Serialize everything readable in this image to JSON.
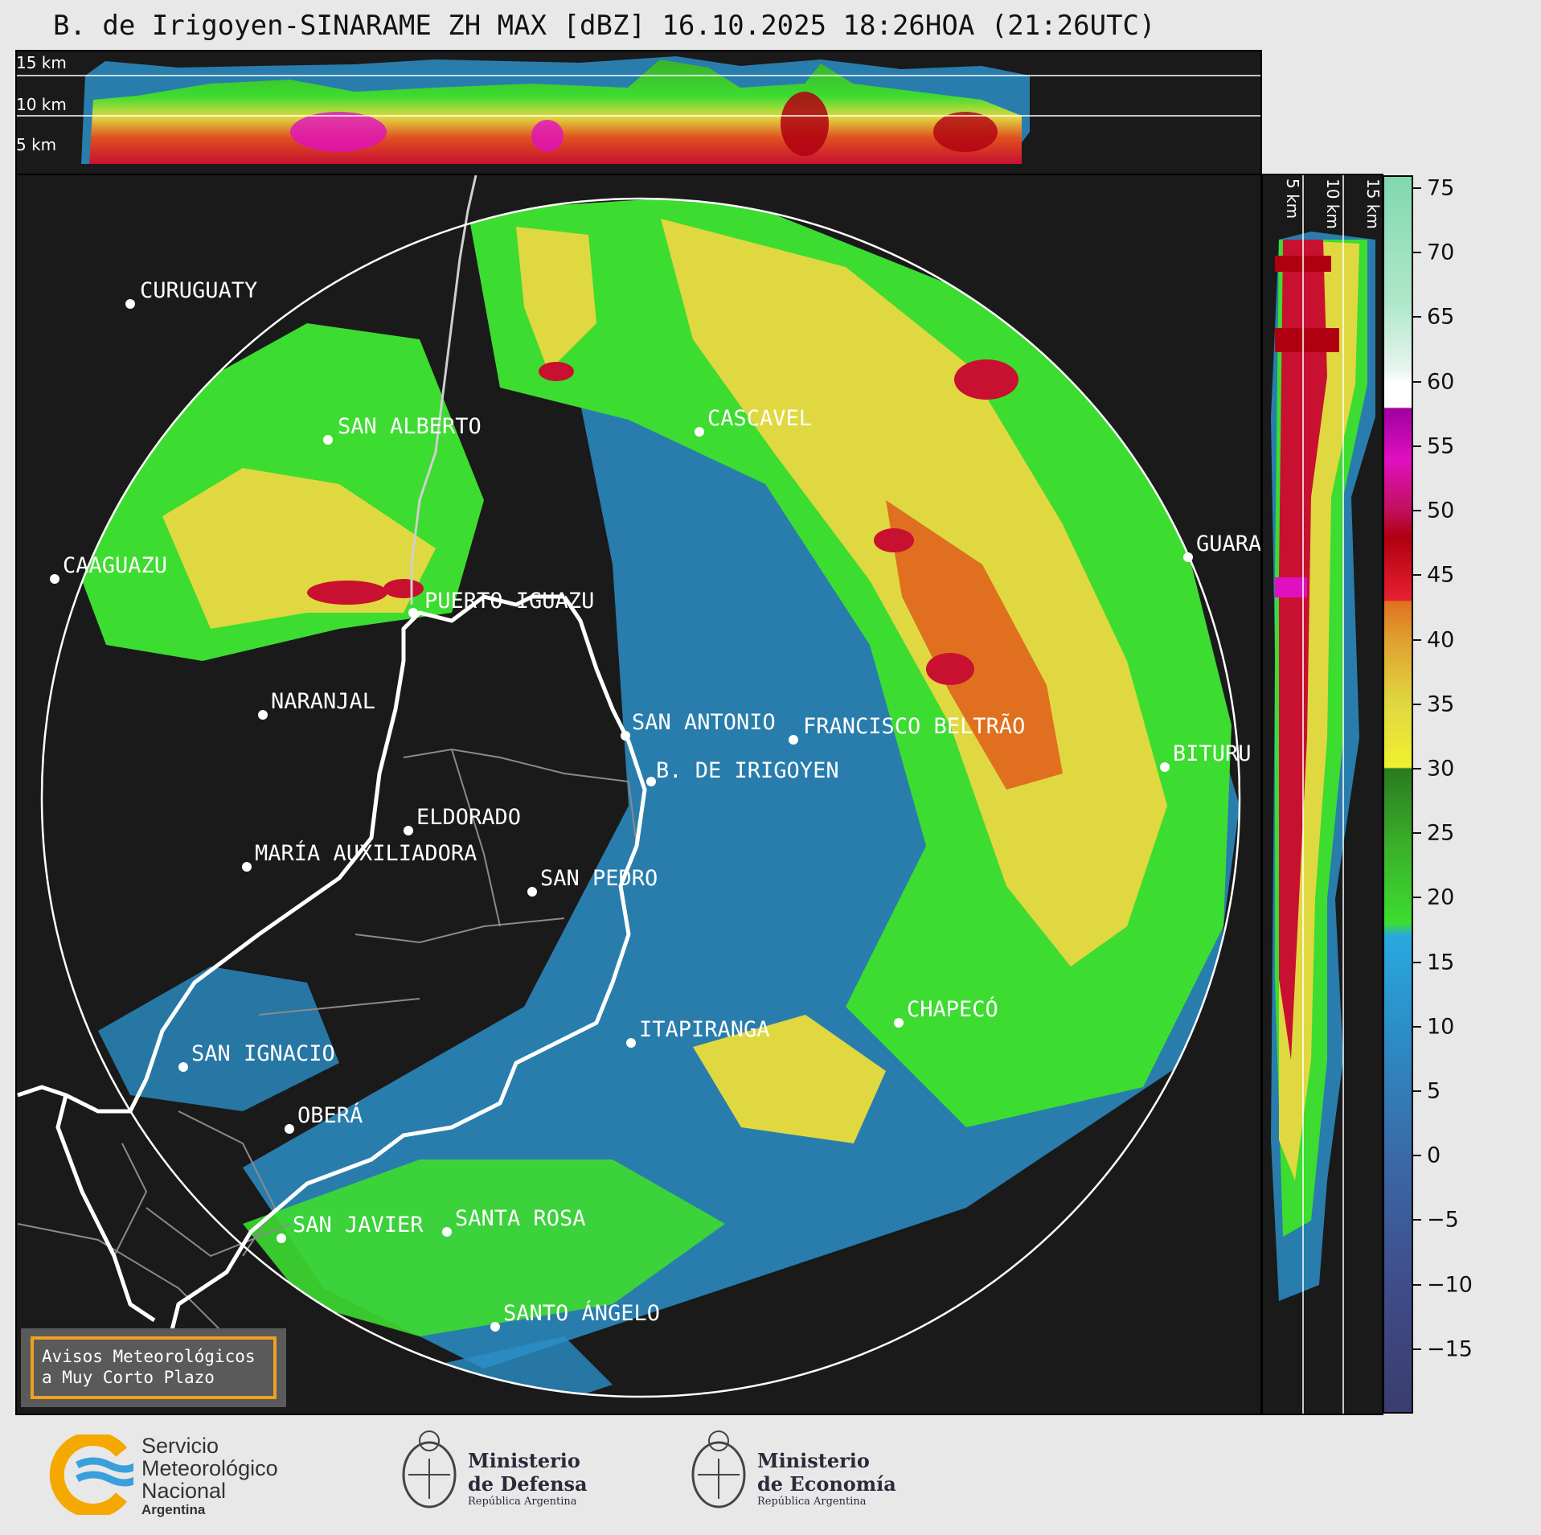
{
  "title": "B. de Irigoyen-SINARAME ZH MAX [dBZ] 16.10.2025 18:26HOA (21:26UTC)",
  "top_panel": {
    "height_labels": [
      "15 km",
      "10 km",
      "5 km"
    ]
  },
  "side_panel": {
    "height_labels": [
      "5 km",
      "10 km",
      "15 km"
    ]
  },
  "colorbar": {
    "unit": "dBZ",
    "ticks": [
      "75",
      "70",
      "65",
      "60",
      "55",
      "50",
      "45",
      "40",
      "35",
      "30",
      "25",
      "20",
      "15",
      "10",
      "5",
      "0",
      "−5",
      "−10",
      "−15"
    ],
    "tick_values": [
      75,
      70,
      65,
      60,
      55,
      50,
      45,
      40,
      35,
      30,
      25,
      20,
      15,
      10,
      5,
      0,
      -5,
      -10,
      -15
    ],
    "range": [
      -20,
      76
    ],
    "stops": [
      {
        "v": -20,
        "c": "#3a3d6e"
      },
      {
        "v": -10,
        "c": "#3f4d8a"
      },
      {
        "v": 0,
        "c": "#3a6aa8"
      },
      {
        "v": 10,
        "c": "#2b8fc8"
      },
      {
        "v": 17,
        "c": "#2aa8de"
      },
      {
        "v": 18,
        "c": "#3ddc30"
      },
      {
        "v": 24,
        "c": "#3ab02a"
      },
      {
        "v": 30,
        "c": "#2a7a20"
      },
      {
        "v": 30.1,
        "c": "#f0f030"
      },
      {
        "v": 35,
        "c": "#e0d840"
      },
      {
        "v": 40,
        "c": "#e0a030"
      },
      {
        "v": 43,
        "c": "#e07020"
      },
      {
        "v": 43.1,
        "c": "#e82030"
      },
      {
        "v": 48,
        "c": "#b00010"
      },
      {
        "v": 50,
        "c": "#c0105a"
      },
      {
        "v": 54,
        "c": "#e010c0"
      },
      {
        "v": 58,
        "c": "#a000a0"
      },
      {
        "v": 58.1,
        "c": "#ffffff"
      },
      {
        "v": 60,
        "c": "#ffffff"
      },
      {
        "v": 61,
        "c": "#e8f5ee"
      },
      {
        "v": 66,
        "c": "#b0e8cc"
      },
      {
        "v": 76,
        "c": "#80d8b0"
      }
    ]
  },
  "cities": [
    {
      "name": "CURUGUATY"
    },
    {
      "name": "SAN ALBERTO"
    },
    {
      "name": "CAAGUAZU"
    },
    {
      "name": "CASCAVEL"
    },
    {
      "name": "GUARA"
    },
    {
      "name": "PUERTO IGUAZU"
    },
    {
      "name": "NARANJAL"
    },
    {
      "name": "SAN ANTONIO"
    },
    {
      "name": "FRANCISCO BELTRÃO"
    },
    {
      "name": "BITURU"
    },
    {
      "name": "B. DE IRIGOYEN"
    },
    {
      "name": "ELDORADO"
    },
    {
      "name": "MARÍA AUXILIADORA"
    },
    {
      "name": "SAN PEDRO"
    },
    {
      "name": "ITAPIRANGA"
    },
    {
      "name": "CHAPECÓ"
    },
    {
      "name": "SAN IGNACIO"
    },
    {
      "name": "OBERÁ"
    },
    {
      "name": "SAN JAVIER"
    },
    {
      "name": "SANTA ROSA"
    },
    {
      "name": "SANTO ÁNGELO"
    }
  ],
  "warning": {
    "line1": "Avisos Meteorológicos",
    "line2": "a Muy Corto Plazo"
  },
  "logos": {
    "smn": {
      "line1": "Servicio",
      "line2": "Meteorológico",
      "line3": "Nacional",
      "line4": "Argentina"
    },
    "defensa": {
      "line1": "Ministerio",
      "line2": "de Defensa",
      "line3": "República Argentina"
    },
    "economia": {
      "line1": "Ministerio",
      "line2": "de Economía",
      "line3": "República Argentina"
    }
  },
  "colors": {
    "panel_bg": "#1a1a1a",
    "range_ring": "#ffffff",
    "border_line": "#ffffff",
    "warning_border": "#f0a020",
    "smn_orange": "#f5a800",
    "smn_blue": "#3aa0dc"
  }
}
